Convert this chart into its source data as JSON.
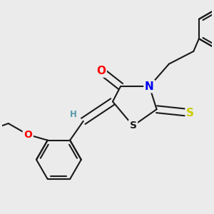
{
  "bg_color": "#ebebeb",
  "bond_color": "#1a1a1a",
  "bond_width": 1.5,
  "atom_colors": {
    "O": "#ff0000",
    "N": "#0000ee",
    "S_thioxo": "#cccc00",
    "S_ring": "#1a1a1a",
    "H": "#5599aa",
    "C": "#1a1a1a"
  },
  "font_size_atom": 10,
  "font_size_H": 8.5
}
